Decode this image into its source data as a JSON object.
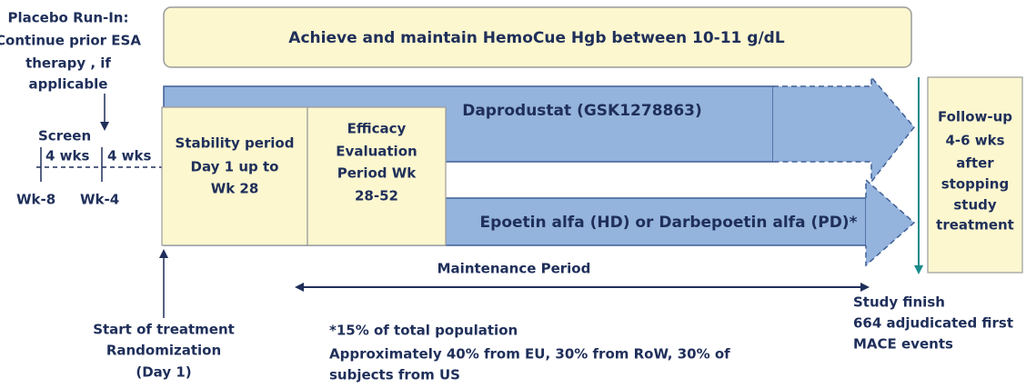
{
  "run_in": {
    "lines": [
      "Placebo Run-In:",
      "Continue prior ESA",
      "therapy , if",
      "applicable"
    ]
  },
  "banner": {
    "text": "Achieve and maintain HemoCue Hgb between 10-11 g/dL"
  },
  "screening": {
    "label": "Screen",
    "periods": [
      "4 wks",
      "4 wks"
    ],
    "weeks": [
      "Wk-8",
      "Wk-4"
    ]
  },
  "arms": [
    {
      "label": "Daprodustat (GSK1278863)"
    },
    {
      "label": "Epoetin alfa (HD) or Darbepoetin alfa (PD)*"
    }
  ],
  "stability": {
    "lines": [
      "Stability period",
      "Day 1 up to",
      "Wk 28"
    ]
  },
  "efficacy": {
    "lines": [
      "Efficacy",
      "Evaluation",
      "Period Wk",
      "28-52"
    ]
  },
  "follow_up": {
    "lines": [
      "Follow-up",
      "4-6 wks",
      "after",
      "stopping",
      "study",
      "treatment"
    ]
  },
  "maintenance": {
    "label": "Maintenance Period"
  },
  "start": {
    "lines": [
      "Start of treatment",
      "Randomization",
      "(Day 1)"
    ]
  },
  "footnote": {
    "lines": [
      "*15% of total population",
      "Approximately 40% from EU, 30% from RoW, 30% of",
      "subjects from US"
    ]
  },
  "finish": {
    "lines": [
      "Study finish",
      "664  adjudicated first",
      "MACE events"
    ]
  }
}
